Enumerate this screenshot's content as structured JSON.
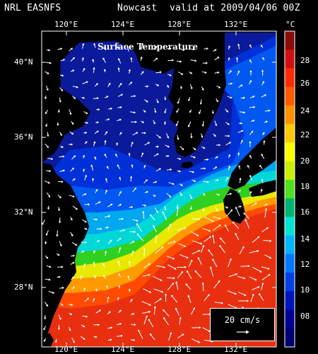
{
  "header": {
    "model": "NRL EASNFS",
    "product": "Nowcast",
    "valid_time": "valid at 2009/04/06 00Z"
  },
  "map": {
    "title": "Surface Temperature",
    "lon_labels": [
      "120°E",
      "124°E",
      "128°E",
      "132°E"
    ],
    "lat_labels": [
      "40°N",
      "36°N",
      "32°N",
      "28°N"
    ],
    "colors": {
      "land": "#000000",
      "warm_sea": "#e83010",
      "cold_sea": "#0a1a9a"
    }
  },
  "colorbar": {
    "unit": "°C",
    "labels": [
      "28",
      "26",
      "24",
      "22",
      "20",
      "18",
      "16",
      "14",
      "12",
      "10",
      "08"
    ],
    "colors": [
      "#8b0b0b",
      "#d01010",
      "#ff2a00",
      "#ff5a00",
      "#ff9000",
      "#ffc800",
      "#ffff00",
      "#c8f000",
      "#50e020",
      "#00b46e",
      "#00e6d2",
      "#00b4ff",
      "#0078ff",
      "#0040e6",
      "#0014be",
      "#000096",
      "#00006e"
    ]
  },
  "scale": {
    "label": "20 cm/s"
  }
}
